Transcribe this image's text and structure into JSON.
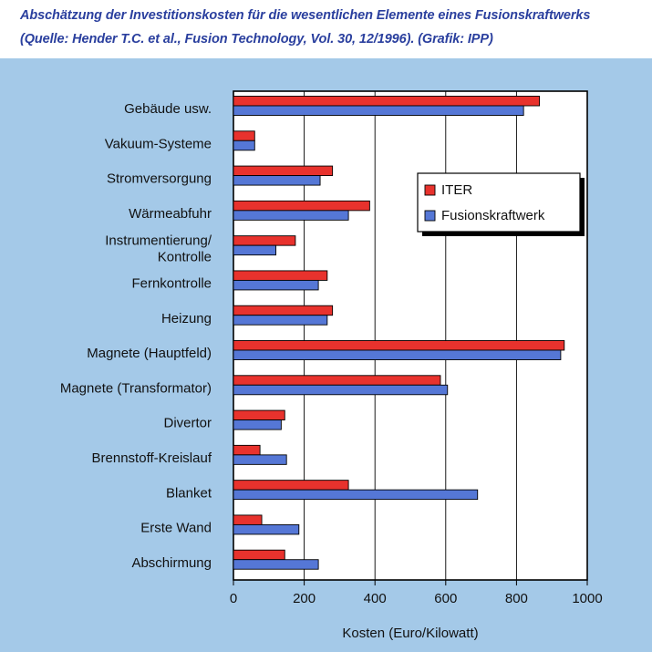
{
  "caption": {
    "line1": "Abschätzung der Investitionskosten für die wesentlichen Elemente eines Fusionskraftwerks",
    "line2": "(Quelle: Hender T.C. et al., Fusion Technology, Vol. 30, 12/1996). (Grafik: IPP)"
  },
  "colors": {
    "panel_background": "#a4c9e8",
    "caption_text": "#2a3f9e",
    "iter": "#e8322d",
    "fusionskraftwerk": "#5577d6"
  },
  "chart_data": {
    "type": "bar",
    "orientation": "horizontal",
    "title": "",
    "xlabel": "Kosten (Euro/Kilowatt)",
    "ylabel": "",
    "xlim": [
      0,
      1000
    ],
    "xticks": [
      0,
      200,
      400,
      600,
      800,
      1000
    ],
    "grid": true,
    "legend_position": "right",
    "categories": [
      "Gebäude usw.",
      "Vakuum-Systeme",
      "Stromversorgung",
      "Wärmeabfuhr",
      "Instrumentierung/ Kontrolle",
      "Fernkontrolle",
      "Heizung",
      "Magnete (Hauptfeld)",
      "Magnete (Transformator)",
      "Divertor",
      "Brennstoff-Kreislauf",
      "Blanket",
      "Erste Wand",
      "Abschirmung"
    ],
    "series": [
      {
        "name": "ITER",
        "color": "#e8322d",
        "values": [
          865,
          60,
          280,
          385,
          175,
          265,
          280,
          935,
          585,
          145,
          75,
          325,
          80,
          145
        ]
      },
      {
        "name": "Fusionskraftwerk",
        "color": "#5577d6",
        "values": [
          820,
          60,
          245,
          325,
          120,
          240,
          265,
          925,
          605,
          135,
          150,
          690,
          185,
          240
        ]
      }
    ]
  }
}
